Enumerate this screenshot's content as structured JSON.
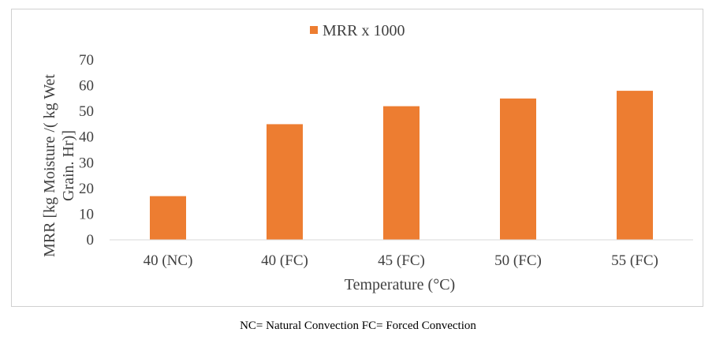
{
  "chart_data": {
    "type": "bar",
    "title": "",
    "categories": [
      "40 (NC)",
      "40 (FC)",
      "45 (FC)",
      "50 (FC)",
      "55 (FC)"
    ],
    "series": [
      {
        "name": "MRR x 1000",
        "values": [
          17,
          45,
          52,
          55,
          58
        ],
        "color": "#ED7D31"
      }
    ],
    "xlabel": "Temperature (°C)",
    "ylabel_lines": [
      "MRR [kg Moisture /( kg Wet",
      "Grain. Hr)]"
    ],
    "ylim": [
      0,
      70
    ],
    "yticks": [
      0,
      10,
      20,
      30,
      40,
      50,
      60,
      70
    ],
    "legend_position": "top-center",
    "grid": false
  },
  "caption": "NC= Natural Convection FC= Forced Convection"
}
